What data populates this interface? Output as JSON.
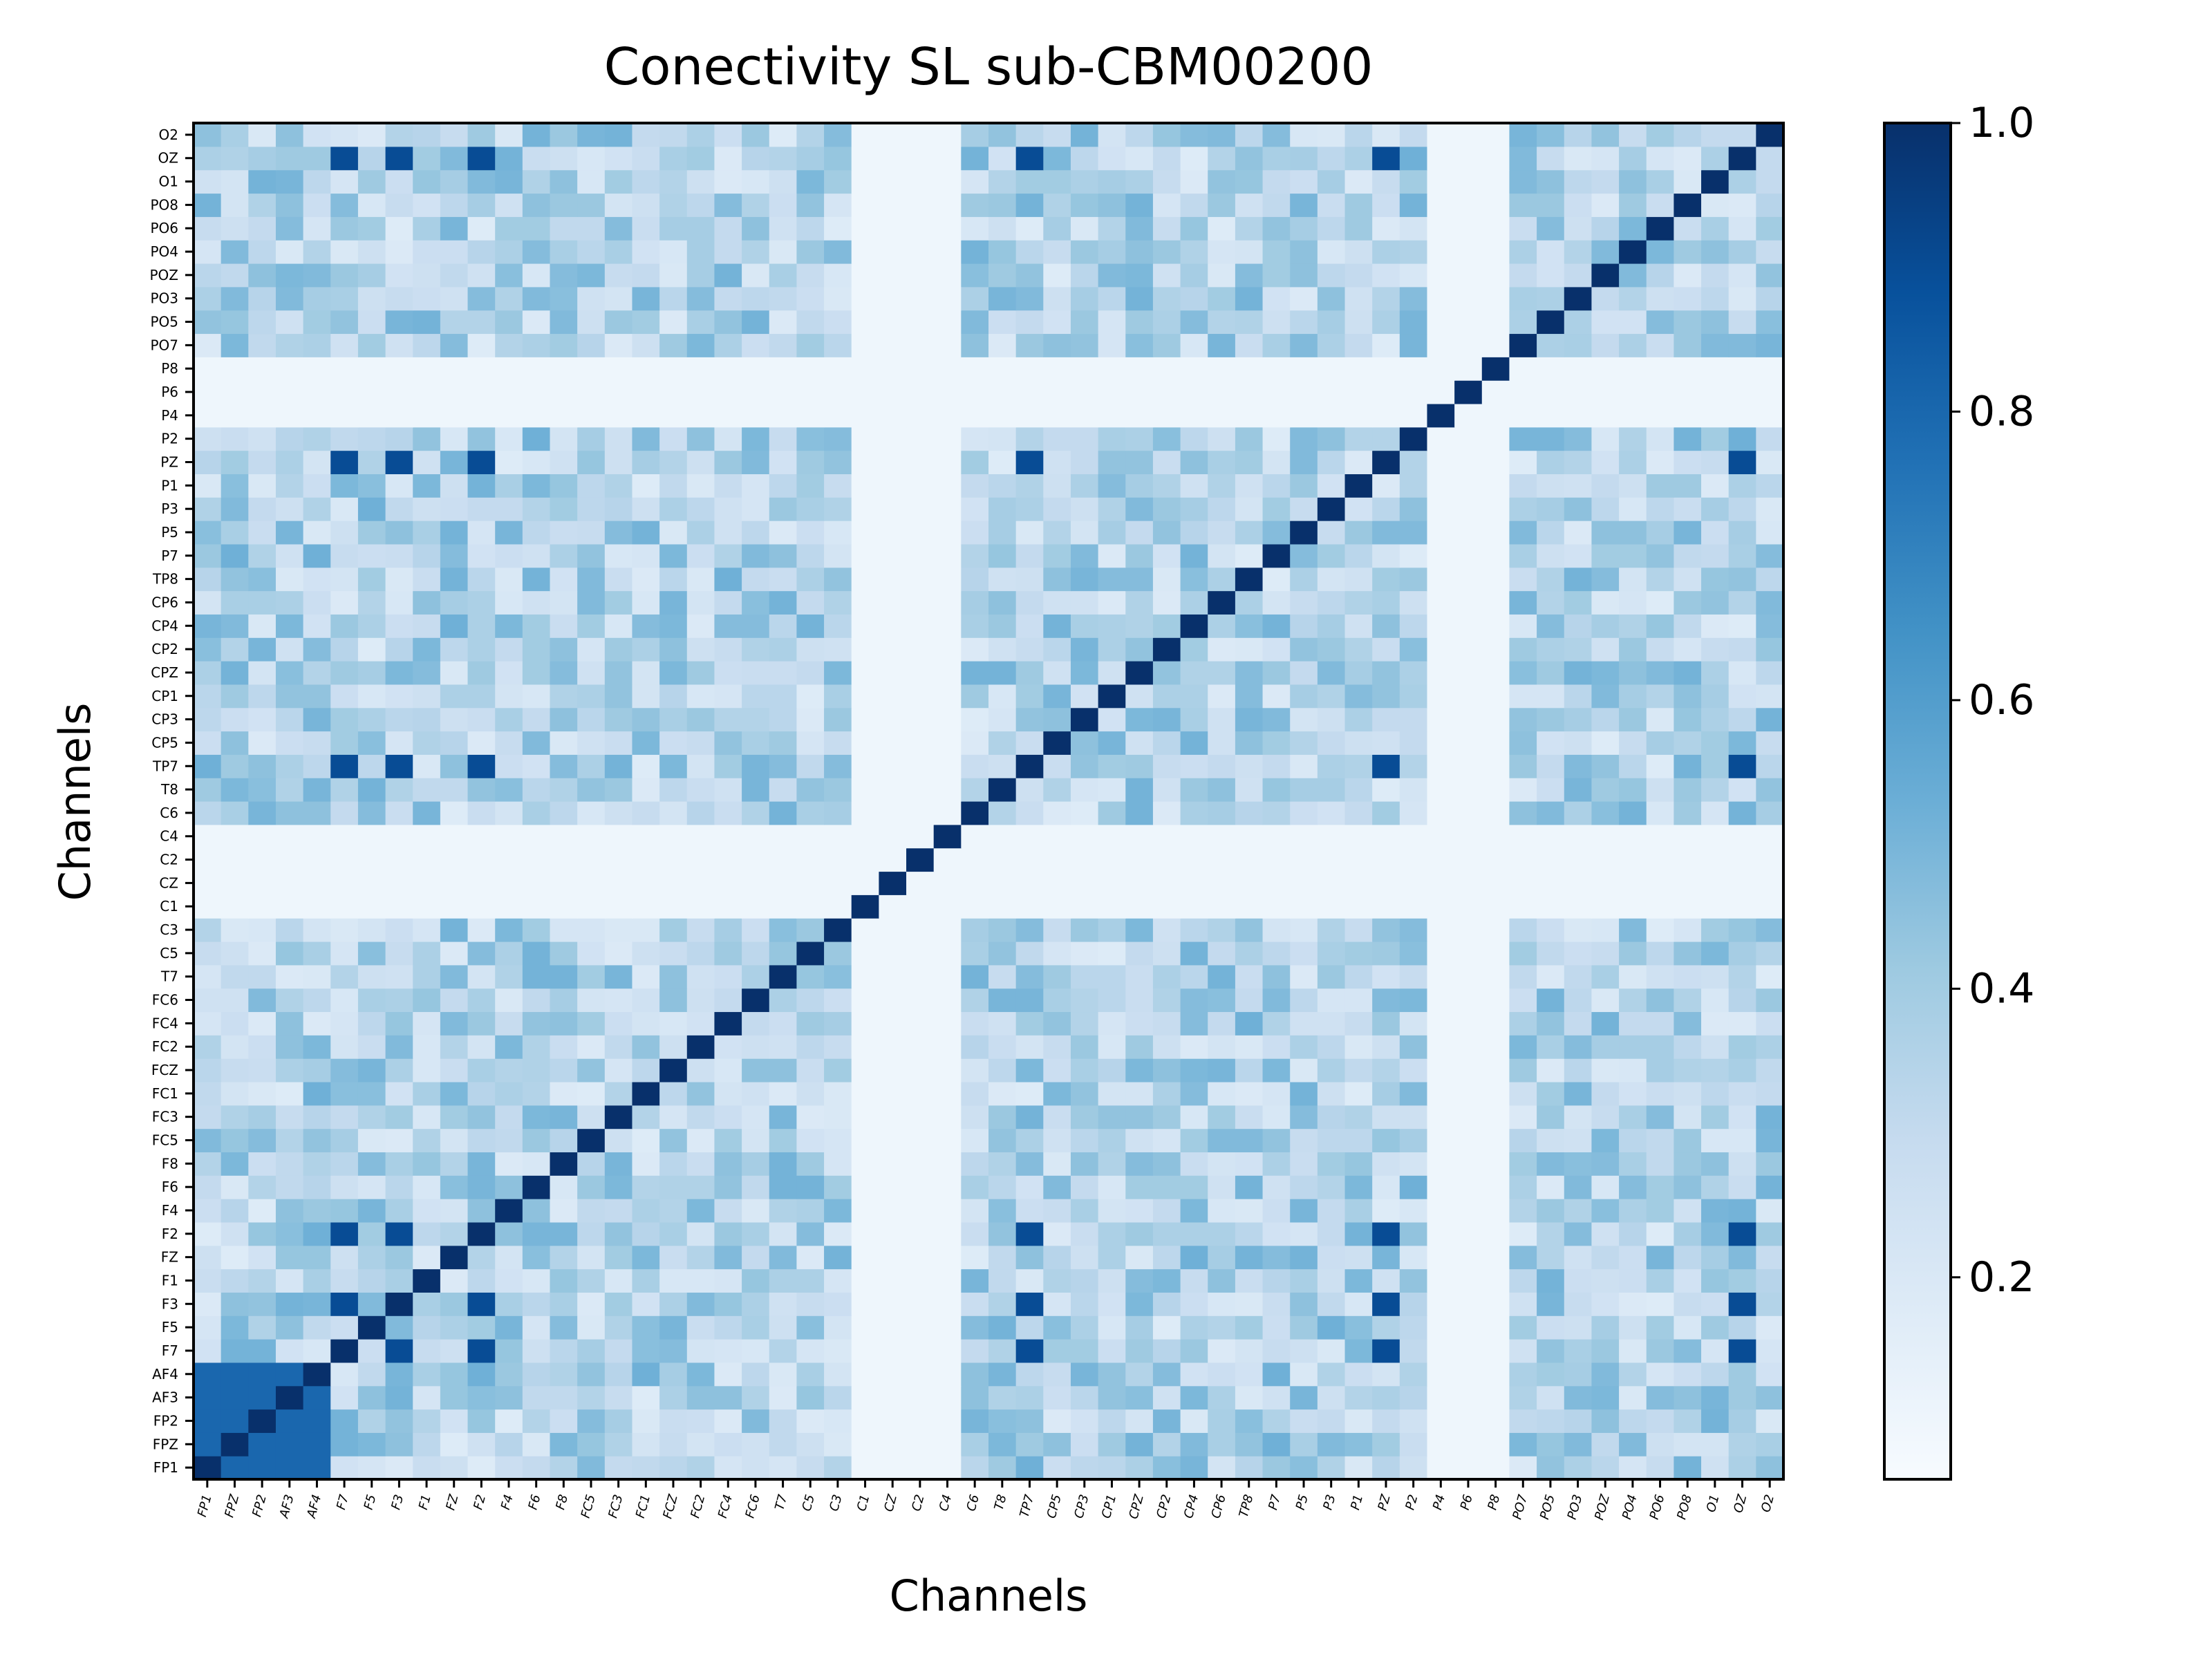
{
  "chart_data": {
    "type": "heatmap",
    "title": "Conectivity SL sub-CBM00200",
    "xlabel": "Channels",
    "ylabel": "Channels",
    "channels": [
      "FP1",
      "FPZ",
      "FP2",
      "AF3",
      "AF4",
      "F7",
      "F5",
      "F3",
      "F1",
      "FZ",
      "F2",
      "F4",
      "F6",
      "F8",
      "FC5",
      "FC3",
      "FC1",
      "FCZ",
      "FC2",
      "FC4",
      "FC6",
      "T7",
      "C5",
      "C3",
      "C1",
      "CZ",
      "C2",
      "C4",
      "C6",
      "T8",
      "TP7",
      "CP5",
      "CP3",
      "CP1",
      "CPZ",
      "CP2",
      "CP4",
      "CP6",
      "TP8",
      "P7",
      "P5",
      "P3",
      "P1",
      "PZ",
      "P2",
      "P4",
      "P6",
      "P8",
      "PO7",
      "PO5",
      "PO3",
      "POZ",
      "PO4",
      "PO6",
      "PO8",
      "O1",
      "OZ",
      "O2"
    ],
    "colormap": "Blues",
    "value_range": [
      0.06,
      1.0
    ],
    "colorbar": {
      "ticks": [
        0.2,
        0.4,
        0.6,
        0.8,
        1.0
      ],
      "tick_labels": [
        "0.2",
        "0.4",
        "0.6",
        "0.8",
        "1.0"
      ]
    },
    "y_axis_order": "FP1 at bottom, O2 at top",
    "x_axis_order": "FP1 at left, O2 at right",
    "diagonal_value": 1.0,
    "cluster_A": [
      "F7",
      "F3",
      "F2",
      "TP7",
      "PZ",
      "OZ"
    ],
    "cluster_A_value": 0.9,
    "cluster_B": [
      "FP1",
      "FPZ",
      "FP2",
      "AF3",
      "AF4"
    ],
    "cluster_B_value": 0.8,
    "low_channels": [
      "C1",
      "CZ",
      "C2",
      "C4",
      "P6",
      "P8",
      "P4"
    ],
    "low_channel_value": 0.1,
    "typical_value": 0.3
  }
}
